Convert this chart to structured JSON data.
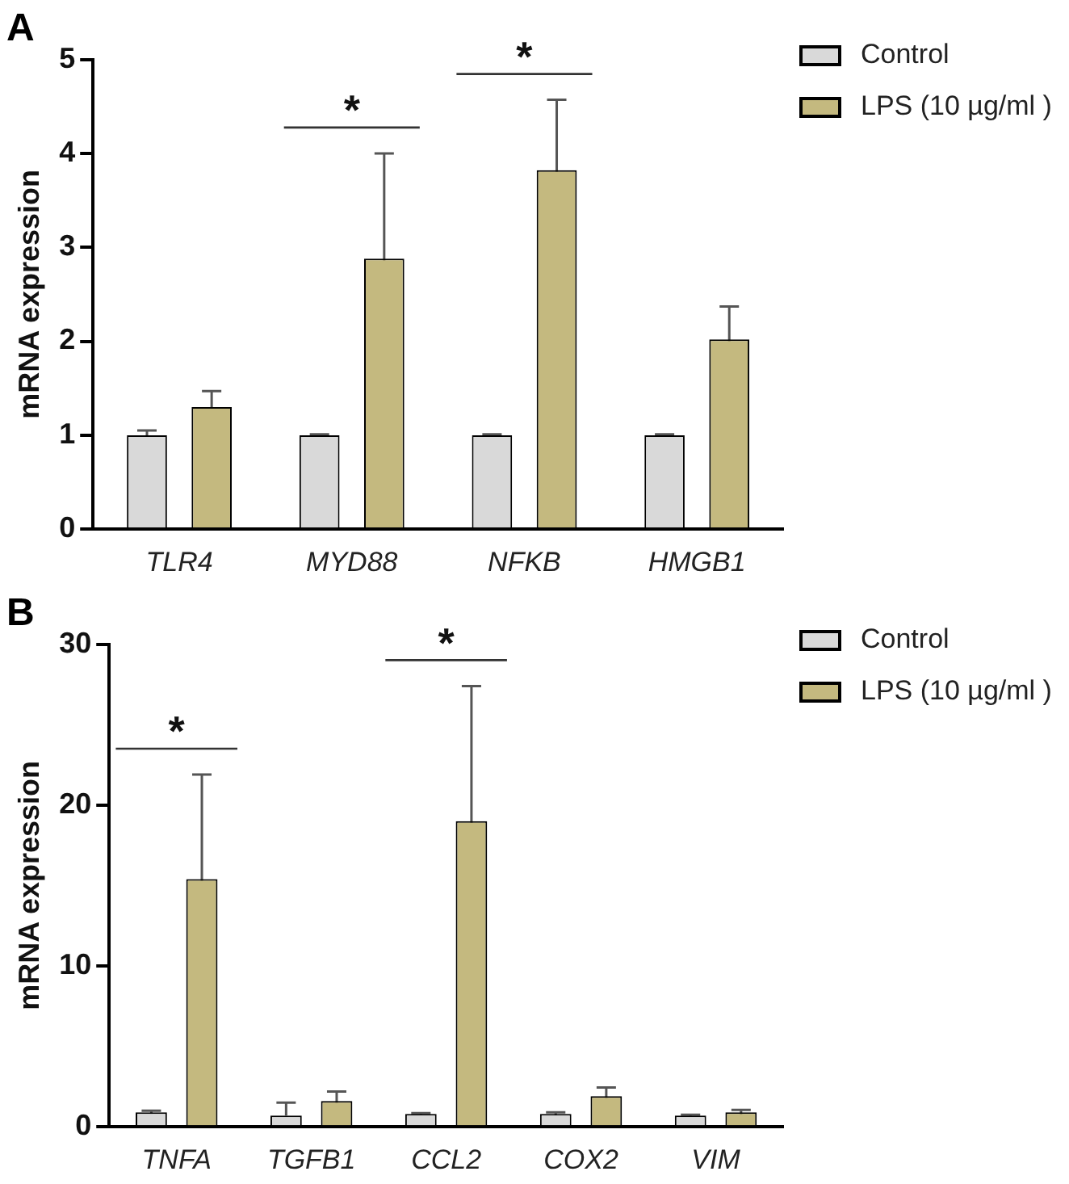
{
  "chart_data": [
    {
      "type": "bar",
      "title": "A",
      "ylabel": "mRNA expression",
      "categories": [
        "TLR4",
        "MYD88",
        "NFKB",
        "HMGB1"
      ],
      "series": [
        {
          "name": "Control",
          "color": "#d9d9d9",
          "values": [
            1,
            1,
            1,
            1
          ],
          "errors": [
            0.05,
            0.01,
            0.01,
            0.01
          ]
        },
        {
          "name": "LPS (10 µg/ml )",
          "color": "#c4b97f",
          "values": [
            1.3,
            2.88,
            3.82,
            2.02
          ],
          "errors": [
            0.17,
            1.12,
            0.75,
            0.35
          ]
        }
      ],
      "ylim": [
        0,
        5
      ],
      "yticks": [
        0,
        1,
        2,
        3,
        4,
        5
      ],
      "grid": false,
      "legend": "top right",
      "annotations": [
        "*",
        "*"
      ]
    },
    {
      "type": "bar",
      "title": "B",
      "ylabel": "mRNA expression",
      "categories": [
        "TNFA",
        "TGFB1",
        "CCL2",
        "COX2",
        "VIM"
      ],
      "series": [
        {
          "name": "Control",
          "color": "#d9d9d9",
          "values": [
            0.9,
            0.7,
            0.8,
            0.8,
            0.7
          ],
          "errors": [
            0.1,
            [
              0.7,
              1.5
            ],
            0.05,
            0.1,
            0.05
          ]
        },
        {
          "name": "LPS (10 µg/ml )",
          "color": "#c4b97f",
          "values": [
            15.4,
            1.6,
            19.0,
            1.9,
            0.9
          ],
          "errors": [
            6.5,
            0.6,
            8.4,
            0.55,
            0.15
          ]
        }
      ],
      "ylim": [
        0,
        30
      ],
      "yticks": [
        0,
        10,
        20,
        30
      ],
      "grid": false,
      "legend": "top right",
      "annotations": [
        "*",
        "*"
      ]
    }
  ]
}
